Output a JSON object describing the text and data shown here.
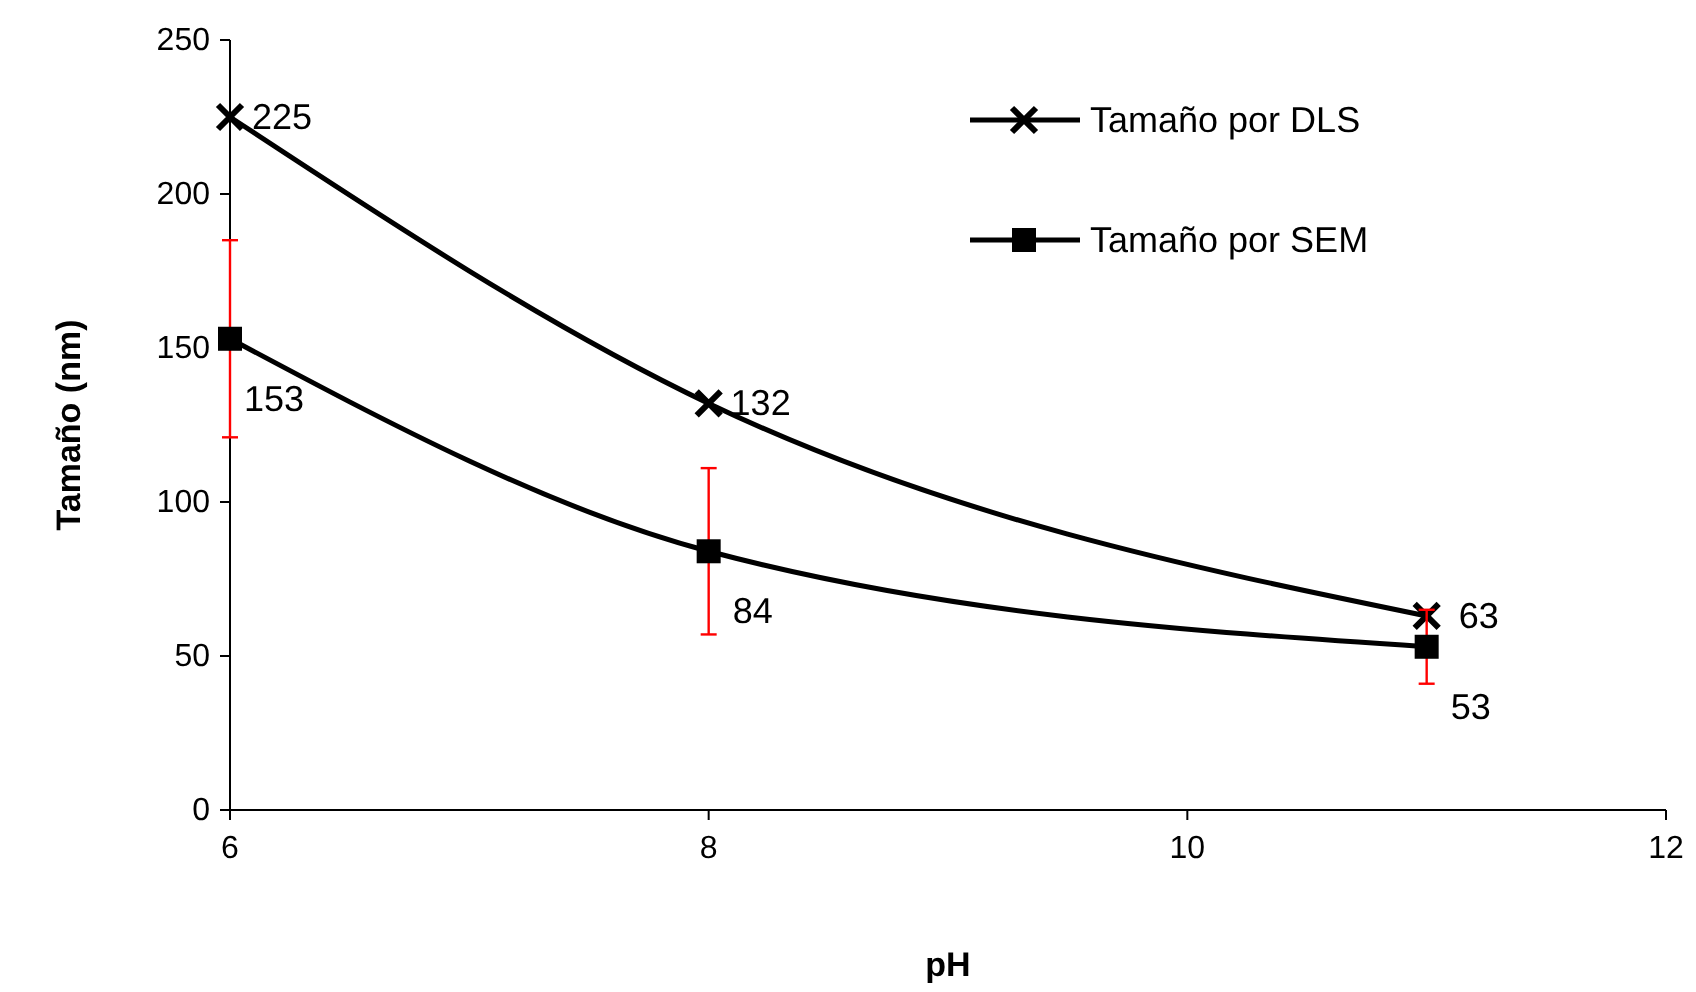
{
  "chart_data": {
    "type": "line",
    "xlabel": "pH",
    "ylabel": "Tamaño (nm)",
    "xlim": [
      6,
      12
    ],
    "xticks": [
      6,
      8,
      10,
      12
    ],
    "ylim": [
      0,
      250
    ],
    "yticks": [
      0,
      50,
      100,
      150,
      200,
      250
    ],
    "grid": false,
    "legend": "top right",
    "data_labels": true,
    "x": [
      6,
      8,
      11
    ],
    "series": [
      {
        "name": "Tamaño por DLS",
        "color": "#000000",
        "marker": "cross",
        "values": [
          225,
          132,
          63
        ]
      },
      {
        "name": "Tamaño por SEM",
        "color": "#000000",
        "marker": "square",
        "values": [
          153,
          84,
          53
        ],
        "errors": [
          32,
          27,
          12
        ]
      }
    ]
  }
}
